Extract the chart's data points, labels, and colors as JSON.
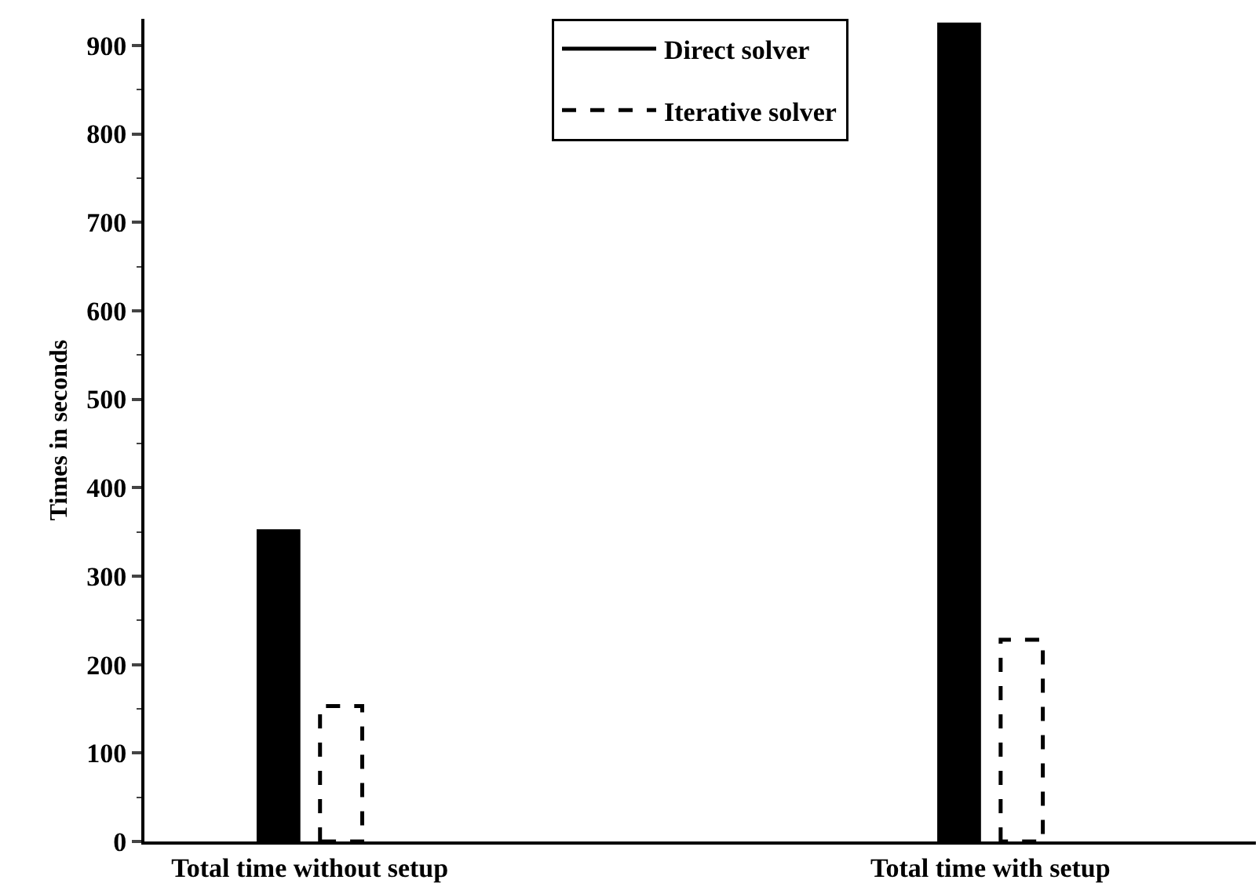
{
  "chart_data": {
    "type": "bar",
    "ylabel": "Times in seconds",
    "categories": [
      "Total time without setup",
      "Total time with setup"
    ],
    "series": [
      {
        "name": "Direct solver",
        "color": "#000000",
        "line_style": "solid",
        "values": [
          352,
          925
        ]
      },
      {
        "name": "Iterative solver",
        "color": "#000000",
        "line_style": "dashed",
        "values": [
          153,
          228
        ]
      }
    ],
    "ylim": [
      0,
      930
    ],
    "yticks": [
      0,
      100,
      200,
      300,
      400,
      500,
      600,
      700,
      800,
      900
    ],
    "legend": "top"
  }
}
